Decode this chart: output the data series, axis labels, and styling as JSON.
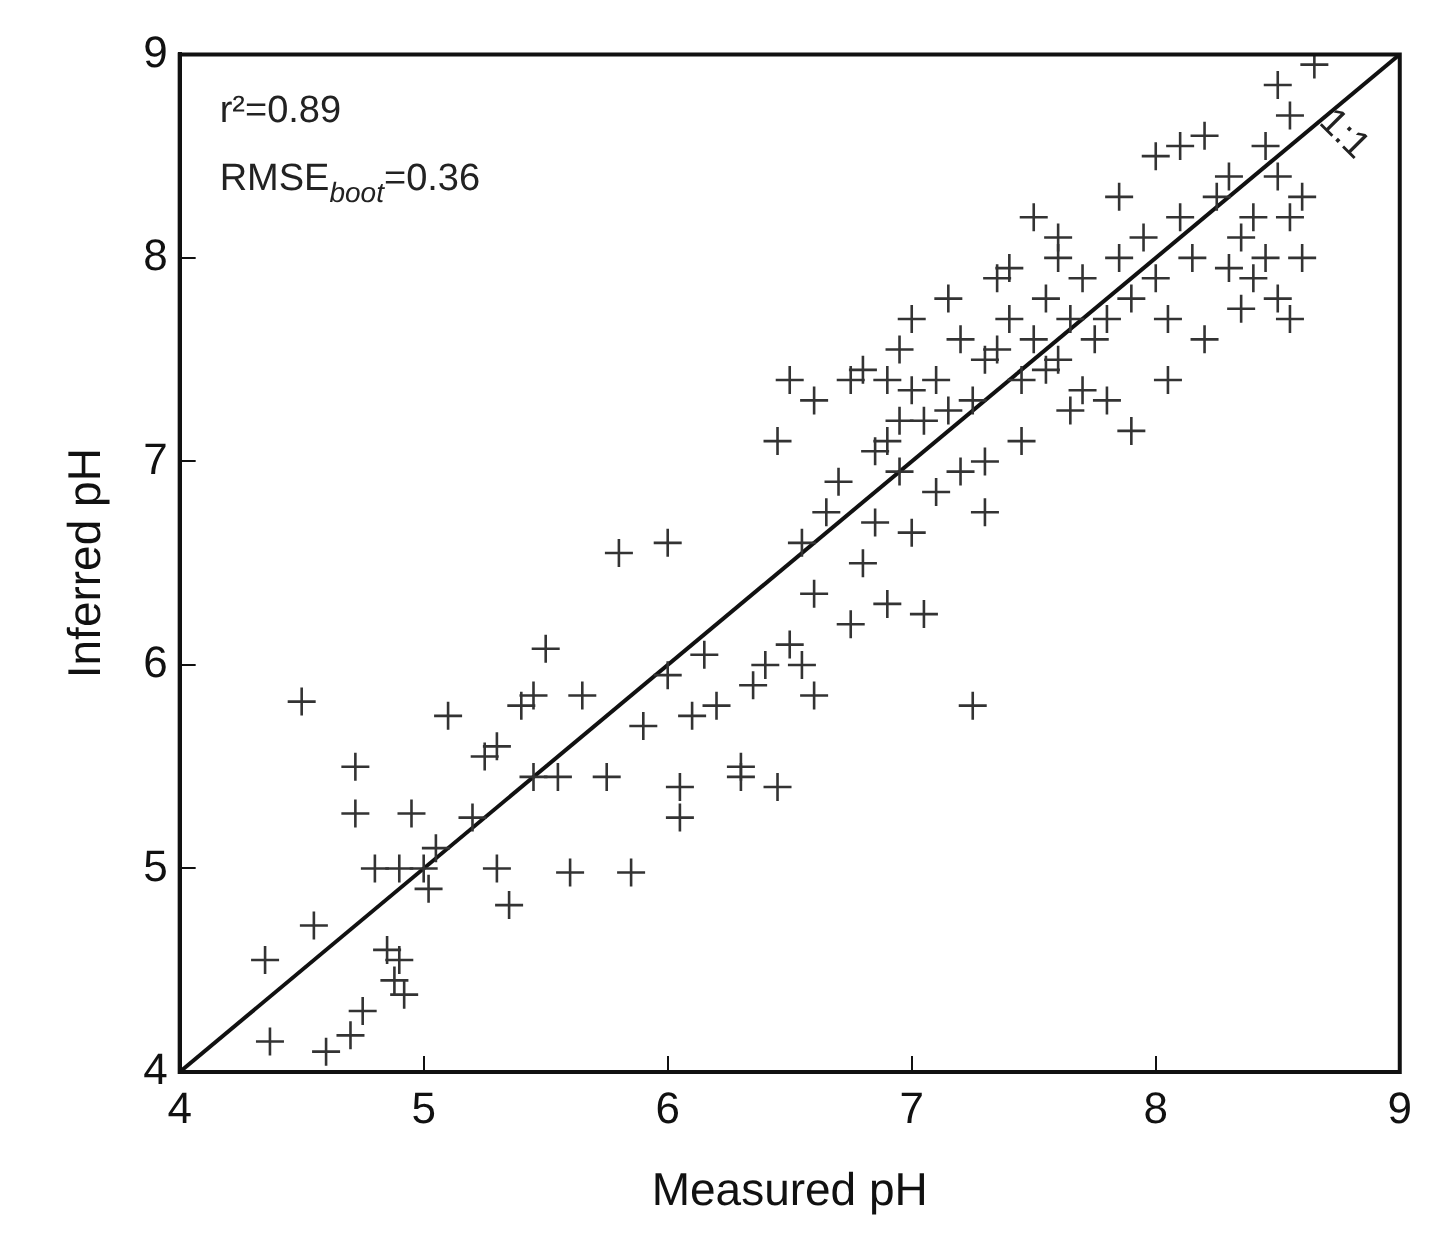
{
  "chart_data": {
    "type": "scatter",
    "xlabel": "Measured pH",
    "ylabel": "Inferred pH",
    "xlim": [
      4,
      9
    ],
    "ylim": [
      4,
      9
    ],
    "xticks": [
      4,
      5,
      6,
      7,
      8,
      9
    ],
    "yticks": [
      4,
      5,
      6,
      7,
      8,
      9
    ],
    "grid": false,
    "legend": false,
    "marker": "cross",
    "annotations": [
      "r²=0.89",
      "RMSE$_{boot}$=0.36",
      "1:1"
    ],
    "series": [
      {
        "type": "scatter",
        "color": "#333333",
        "x": [
          4.35,
          4.37,
          4.6,
          4.55,
          4.5,
          4.72,
          4.72,
          4.8,
          4.75,
          4.7,
          4.85,
          4.88,
          4.9,
          4.92,
          4.95,
          4.9,
          5.0,
          5.02,
          5.05,
          5.1,
          5.2,
          5.25,
          5.3,
          5.3,
          5.35,
          5.4,
          5.45,
          5.5,
          5.45,
          5.55,
          5.6,
          5.65,
          5.75,
          5.8,
          5.85,
          5.9,
          6.0,
          6.0,
          6.05,
          6.05,
          6.1,
          6.15,
          6.2,
          6.3,
          6.35,
          6.4,
          6.45,
          6.5,
          6.55,
          6.6,
          6.55,
          6.6,
          6.5,
          6.6,
          6.45,
          6.75,
          6.8,
          6.7,
          6.75,
          6.85,
          6.9,
          7.0,
          7.05,
          7.1,
          7.2,
          7.25,
          7.3,
          6.9,
          6.95,
          6.85,
          6.95,
          7.0,
          7.05,
          7.1,
          7.15,
          7.2,
          7.25,
          7.3,
          7.35,
          7.4,
          7.45,
          7.5,
          7.55,
          7.6,
          7.65,
          7.7,
          7.7,
          7.75,
          7.8,
          7.85,
          7.9,
          7.95,
          8.0,
          8.05,
          8.1,
          8.15,
          8.2,
          8.25,
          8.3,
          8.35,
          8.4,
          8.45,
          8.5,
          8.55,
          8.6,
          8.4,
          8.5,
          8.55,
          8.45,
          8.5,
          8.55,
          8.65,
          8.2,
          8.1,
          8.0,
          7.85,
          7.6,
          7.5,
          7.8,
          7.9,
          8.05,
          7.65,
          7.45,
          7.3,
          7.35,
          7.15,
          7.0,
          6.95,
          6.8,
          6.9,
          8.3,
          8.35,
          8.6,
          7.6,
          7.4,
          7.55,
          6.65,
          6.3
        ],
        "values": [
          4.55,
          4.15,
          4.1,
          4.72,
          5.82,
          5.5,
          5.27,
          5.0,
          4.3,
          4.18,
          4.6,
          4.45,
          4.55,
          4.38,
          5.27,
          5.0,
          5.0,
          4.9,
          5.1,
          5.75,
          5.25,
          5.55,
          5.6,
          5.0,
          4.82,
          5.8,
          5.85,
          6.08,
          5.45,
          5.45,
          4.98,
          5.85,
          5.45,
          6.55,
          4.98,
          5.7,
          6.6,
          5.95,
          5.4,
          5.25,
          5.75,
          6.05,
          5.8,
          5.5,
          5.9,
          6.0,
          5.4,
          6.1,
          6.0,
          5.85,
          6.6,
          6.35,
          7.4,
          7.3,
          7.1,
          6.2,
          6.5,
          6.9,
          7.4,
          6.7,
          6.3,
          6.65,
          6.25,
          6.85,
          6.95,
          5.8,
          7.0,
          7.1,
          7.2,
          7.05,
          6.95,
          7.35,
          7.2,
          7.4,
          7.25,
          7.6,
          7.3,
          7.5,
          7.55,
          7.7,
          7.4,
          7.6,
          7.8,
          7.5,
          7.7,
          7.35,
          7.9,
          7.6,
          7.7,
          8.0,
          7.8,
          8.1,
          7.9,
          7.7,
          8.2,
          8.0,
          7.6,
          8.3,
          7.95,
          8.1,
          8.2,
          8.0,
          8.4,
          8.2,
          8.0,
          7.9,
          7.8,
          7.7,
          8.55,
          8.85,
          8.7,
          8.95,
          8.6,
          8.55,
          8.5,
          8.3,
          8.1,
          8.2,
          7.3,
          7.15,
          7.4,
          7.25,
          7.1,
          6.75,
          7.9,
          7.8,
          7.7,
          7.55,
          7.45,
          7.4,
          8.4,
          7.75,
          8.3,
          8.0,
          7.95,
          7.45,
          6.75,
          5.45
        ]
      },
      {
        "type": "line",
        "color": "#111111",
        "marker": "none",
        "x": [
          4,
          9
        ],
        "values": [
          4,
          9
        ]
      }
    ]
  }
}
